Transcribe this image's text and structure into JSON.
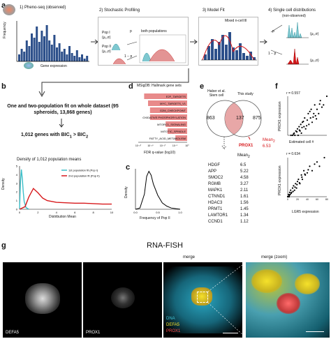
{
  "panel_a": {
    "letter": "a",
    "step1": "1) Pheno-seq (observed)",
    "step2": "2) Stochastic Profiling",
    "step3": "3) Model Fit",
    "step4": "4) Single cell distributions",
    "step4_sub": "(non-observed)",
    "ylabel": "Frequency",
    "xlabel": "Gene expression",
    "pop1": "Pop I",
    "pop1_params": "(μ₁,σ)",
    "pop2": "Pop II",
    "pop2_params": "(μ₂,σ)",
    "p_label": "p",
    "one_minus_p": "1 − p",
    "both_pops": "both populations",
    "legend": "Mixed n-cell lll",
    "dist1_params": "(μ₁,σ)",
    "dist2_params": "(μ₂,σ)"
  },
  "panel_b": {
    "letter": "b",
    "text1": "One and two-population fit on whole dataset (95 spheroids, 13,868 genes)",
    "text2": "1,012 genes with BIC",
    "text2_sub1": "1",
    "text2_mid": " > BIC",
    "text2_sub2": "2",
    "density_title": "Density of 1,012 population means",
    "ylabel": "Density",
    "xlabel": "Distribution Mean",
    "yticks": [
      "0",
      "1",
      "2",
      "3",
      "4",
      "5"
    ],
    "xticks": [
      "0",
      "2",
      "4",
      "6",
      "8",
      "10"
    ],
    "legend": [
      {
        "label": "1st population fit (Pop I)",
        "color": "#3bbfc9"
      },
      {
        "label": "2nd population fit (Pop II)",
        "color": "#d7191c"
      }
    ]
  },
  "panel_c": {
    "letter": "c",
    "ylabel": "Density",
    "xlabel": "Frequency of Pop II",
    "xticks": [
      "0.0",
      "0.5",
      "1.0"
    ]
  },
  "panel_d": {
    "letter": "d",
    "title": "MSigDB: Hallmark gene sets",
    "xlabel": "FDR q-value (log10)",
    "xticks": [
      "10⁻²⁰",
      "10⁻¹⁵",
      "10⁻¹⁰",
      "10⁻⁵",
      "10⁰"
    ],
    "terms": [
      "E2F_TARGETS",
      "MYC_TARGETS_V1",
      "G2M_CHECKPOINT",
      "OXIDATIVE PHOSPHORYLATION",
      "MTORC1_SIGNALING",
      "MITOTIC_SPINDLE",
      "FATTY_ACID_METABOLISM"
    ],
    "bar_color": "#e88a8a"
  },
  "panel_e": {
    "letter": "e",
    "left_label": "Haber et al. Stem cell",
    "right_label": "This study",
    "left_count": "863",
    "overlap_count": "137",
    "right_count": "875",
    "highlight_gene": "PROX1",
    "mean_label": "Mean",
    "mean_sub": "2",
    "mean_value": "6.53",
    "table_header": "Mean",
    "table_header_sub": "2",
    "genes": [
      {
        "gene": "HDGF",
        "mean": "6.5"
      },
      {
        "gene": "APP",
        "mean": "5.22"
      },
      {
        "gene": "SMOC2",
        "mean": "4.58"
      },
      {
        "gene": "RGMB",
        "mean": "3.27"
      },
      {
        "gene": "MAPK1",
        "mean": "2.11"
      },
      {
        "gene": "CTNND1",
        "mean": "1.61"
      },
      {
        "gene": "HDAC3",
        "mean": "1.56"
      },
      {
        "gene": "PRMT1",
        "mean": "1.45"
      },
      {
        "gene": "LAMTOR1",
        "mean": "1.34"
      },
      {
        "gene": "CCND1",
        "mean": "1.12"
      }
    ]
  },
  "panel_f": {
    "letter": "f",
    "top": {
      "r": "r = 0.557",
      "ylabel": "PROX1 expression",
      "xlabel": "Estimated cell #"
    },
    "bottom": {
      "r": "r = 0.634",
      "ylabel": "PROX1 expression",
      "xlabel": "LGR5 expression",
      "xticks": [
        "0",
        "20",
        "40",
        "60",
        "80"
      ]
    }
  },
  "panel_g": {
    "letter": "g",
    "title": "RNA-FISH",
    "panel1_label": "DEFA5",
    "panel2_label": "PROX1",
    "panel3_title": "merge",
    "panel3_legend": [
      "DNA",
      "DEFA5",
      "PROX1"
    ],
    "panel3_legend_colors": [
      "#3fc6d8",
      "#f5e12a",
      "#ff4a4a"
    ],
    "panel4_title": "merge (zoom)"
  },
  "chart_data": [
    {
      "type": "line",
      "title": "Density of 1,012 population means",
      "xlabel": "Distribution Mean",
      "ylabel": "Density",
      "xlim": [
        0,
        10
      ],
      "ylim": [
        0,
        5
      ],
      "series": [
        {
          "name": "1st population fit (Pop I)",
          "x": [
            0,
            0.1,
            0.2,
            0.3,
            0.4,
            0.5,
            0.7,
            1.0
          ],
          "y": [
            0,
            3.2,
            4.6,
            3.5,
            2.0,
            0.9,
            0.2,
            0
          ]
        },
        {
          "name": "2nd population fit (Pop II)",
          "x": [
            0,
            0.6,
            1.0,
            1.5,
            2.0,
            2.5,
            3.0,
            4.0,
            5.0,
            6.0,
            7.0,
            8.0,
            9.0,
            10.0
          ],
          "y": [
            0,
            0.3,
            1.4,
            2.4,
            1.9,
            1.3,
            1.0,
            0.8,
            0.75,
            0.7,
            0.7,
            0.65,
            0.6,
            0.6
          ]
        }
      ]
    },
    {
      "type": "line",
      "xlabel": "Frequency of Pop II",
      "ylabel": "Density",
      "xlim": [
        0,
        1
      ],
      "series": [
        {
          "x": [
            0,
            0.1,
            0.2,
            0.25,
            0.3,
            0.35,
            0.4,
            0.5,
            0.6,
            0.7,
            0.8,
            0.9,
            1.0
          ],
          "y": [
            0,
            0.1,
            1.2,
            2.6,
            3.0,
            2.7,
            2.0,
            1.1,
            0.5,
            0.25,
            0.1,
            0.05,
            0
          ]
        }
      ]
    },
    {
      "type": "bar",
      "title": "MSigDB: Hallmark gene sets",
      "xlabel": "FDR q-value (log10)",
      "categories": [
        "E2F_TARGETS",
        "MYC_TARGETS_V1",
        "G2M_CHECKPOINT",
        "OXIDATIVE PHOSPHORYLATION",
        "MTORC1_SIGNALING",
        "MITOTIC_SPINDLE",
        "FATTY_ACID_METABOLISM"
      ],
      "values": [
        22,
        20,
        19,
        19,
        11,
        10,
        6
      ]
    },
    {
      "type": "scatter",
      "xlabel": "Estimated cell #",
      "ylabel": "PROX1 expression",
      "annotation": "r = 0.557",
      "x": [
        1,
        1.5,
        2,
        2.2,
        2.5,
        3,
        3.2,
        3.5,
        3.8,
        4,
        4.2,
        4.5,
        5,
        5.2,
        5.5,
        6,
        6.3,
        6.5,
        7,
        7.2,
        7.5,
        8,
        8.3,
        8.5,
        9,
        9.5,
        10,
        10.5,
        11,
        12,
        2.8,
        3.6,
        4.8,
        5.8,
        6.8,
        7.8,
        8.8,
        9.8,
        1.8,
        4.4
      ],
      "y": [
        0,
        0,
        0.5,
        0,
        1,
        1.5,
        0,
        2,
        1,
        2.5,
        0.5,
        3,
        2,
        4,
        1.5,
        3.5,
        5,
        2.5,
        4,
        6,
        3,
        5,
        7,
        4.5,
        6,
        5,
        8,
        6.5,
        7,
        9,
        0.8,
        1.2,
        3.2,
        2.2,
        5.5,
        4.2,
        3.8,
        7.2,
        0.3,
        1.8
      ]
    },
    {
      "type": "scatter",
      "xlabel": "LGR5 expression",
      "ylabel": "PROX1 expression",
      "annotation": "r = 0.634",
      "x": [
        0,
        1,
        2,
        3,
        4,
        5,
        6,
        8,
        10,
        12,
        14,
        16,
        18,
        20,
        22,
        25,
        28,
        30,
        33,
        36,
        40,
        45,
        50,
        55,
        60,
        65,
        75,
        3,
        7,
        11,
        15,
        19,
        24,
        29,
        35,
        42
      ],
      "y": [
        0,
        0,
        0.5,
        0,
        1,
        0.5,
        1.5,
        1,
        2,
        2.5,
        1.5,
        3,
        2,
        3.5,
        4,
        3,
        5,
        4,
        6,
        5,
        5.5,
        7,
        6,
        7.5,
        8,
        7,
        9,
        0.3,
        0.8,
        1.2,
        2.2,
        2.8,
        3.2,
        4.5,
        5.2,
        6.2
      ]
    }
  ]
}
